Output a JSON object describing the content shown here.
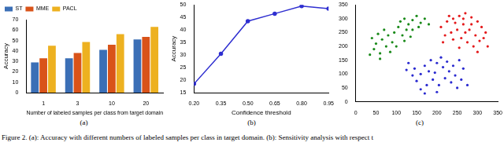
{
  "figure_caption": "Figure 2. (a): Accuracy with different numbers of labeled samples per class in target domain. (b): Sensitivity analysis with respect t",
  "chart_data": [
    {
      "type": "bar",
      "panel_label": "(a)",
      "x_label": "Number of labeled samples per class from target domain",
      "y_label": "Accuracy",
      "categories": [
        "1",
        "3",
        "10",
        "20"
      ],
      "series": [
        {
          "name": "ST",
          "color": "#3b6fb6",
          "values": [
            29,
            33,
            41,
            51
          ]
        },
        {
          "name": "MME",
          "color": "#d95319",
          "values": [
            33,
            38,
            46,
            53.5
          ]
        },
        {
          "name": "PACL",
          "color": "#edb120",
          "values": [
            45,
            48.5,
            56,
            63
          ]
        }
      ],
      "ylim": [
        0,
        70
      ],
      "yticks": [
        0,
        10,
        20,
        30,
        40,
        50,
        60,
        70
      ],
      "legend": "upper left",
      "grid": false
    },
    {
      "type": "line",
      "panel_label": "(b)",
      "x_label": "Confidence threshold",
      "y_label": "Accuracy",
      "x": [
        0.2,
        0.35,
        0.5,
        0.65,
        0.8,
        0.95
      ],
      "series": [
        {
          "color": "#2f2fd0",
          "marker": "circle",
          "line_style": "solid",
          "values": [
            18.5,
            30.5,
            43.5,
            46.5,
            49.5,
            48.5
          ]
        }
      ],
      "xlim": [
        0.2,
        0.95
      ],
      "xticks": [
        {
          "value": 0.2,
          "label": "0.20"
        },
        {
          "value": 0.35,
          "label": "0.35"
        },
        {
          "value": 0.5,
          "label": "0.50"
        },
        {
          "value": 0.65,
          "label": "0.65"
        },
        {
          "value": 0.8,
          "label": "0.80"
        },
        {
          "value": 0.95,
          "label": "0.95"
        }
      ],
      "ylim": [
        15,
        50
      ],
      "yticks": [
        15,
        20,
        25,
        30,
        35,
        40,
        45,
        50
      ],
      "grid": false
    },
    {
      "type": "scatter",
      "panel_label": "(c)",
      "series": [
        {
          "color": "#1a8a1a",
          "marker": "circle",
          "values": [
            [
              40,
              230
            ],
            [
              55,
              245
            ],
            [
              50,
              210
            ],
            [
              70,
              260
            ],
            [
              65,
              225
            ],
            [
              80,
              240
            ],
            [
              45,
              190
            ],
            [
              60,
              175
            ],
            [
              75,
              200
            ],
            [
              90,
              215
            ],
            [
              95,
              250
            ],
            [
              105,
              270
            ],
            [
              110,
              290
            ],
            [
              120,
              300
            ],
            [
              130,
              280
            ],
            [
              140,
              295
            ],
            [
              125,
              260
            ],
            [
              150,
              310
            ],
            [
              160,
              285
            ],
            [
              170,
              300
            ],
            [
              115,
              240
            ],
            [
              135,
              235
            ],
            [
              100,
              200
            ],
            [
              85,
              180
            ],
            [
              140,
              260
            ],
            [
              155,
              270
            ],
            [
              180,
              280
            ],
            [
              60,
              155
            ],
            [
              35,
              170
            ],
            [
              120,
              220
            ]
          ]
        },
        {
          "color": "#e41a1c",
          "marker": "circle",
          "values": [
            [
              210,
              270
            ],
            [
              225,
              290
            ],
            [
              240,
              300
            ],
            [
              255,
              310
            ],
            [
              270,
              320
            ],
            [
              285,
              305
            ],
            [
              300,
              290
            ],
            [
              310,
              270
            ],
            [
              320,
              250
            ],
            [
              295,
              240
            ],
            [
              280,
              260
            ],
            [
              265,
              280
            ],
            [
              250,
              260
            ],
            [
              235,
              250
            ],
            [
              220,
              240
            ],
            [
              260,
              230
            ],
            [
              275,
              215
            ],
            [
              290,
              200
            ],
            [
              305,
              220
            ],
            [
              315,
              230
            ],
            [
              245,
              285
            ],
            [
              230,
              310
            ],
            [
              265,
              300
            ],
            [
              285,
              280
            ],
            [
              325,
              200
            ],
            [
              300,
              180
            ],
            [
              215,
              215
            ],
            [
              240,
              225
            ],
            [
              255,
              195
            ],
            [
              270,
              250
            ]
          ]
        },
        {
          "color": "#2a2ad0",
          "marker": "circle",
          "values": [
            [
              130,
              140
            ],
            [
              145,
              120
            ],
            [
              160,
              100
            ],
            [
              170,
              130
            ],
            [
              185,
              150
            ],
            [
              200,
              140
            ],
            [
              215,
              125
            ],
            [
              230,
              110
            ],
            [
              245,
              95
            ],
            [
              260,
              80
            ],
            [
              275,
              60
            ],
            [
              250,
              50
            ],
            [
              235,
              70
            ],
            [
              220,
              85
            ],
            [
              205,
              60
            ],
            [
              190,
              80
            ],
            [
              175,
              60
            ],
            [
              160,
              45
            ],
            [
              150,
              75
            ],
            [
              140,
              95
            ],
            [
              180,
              110
            ],
            [
              195,
              105
            ],
            [
              210,
              160
            ],
            [
              225,
              145
            ],
            [
              240,
              130
            ],
            [
              265,
              120
            ],
            [
              255,
              150
            ],
            [
              170,
              30
            ],
            [
              200,
              35
            ],
            [
              125,
              115
            ]
          ]
        }
      ],
      "xlim": [
        0,
        350
      ],
      "xticks": [
        0,
        50,
        100,
        150,
        200,
        250,
        300,
        350
      ],
      "ylim": [
        0,
        350
      ],
      "yticks": [
        0,
        50,
        100,
        150,
        200,
        250,
        300,
        350
      ],
      "grid": false
    }
  ]
}
